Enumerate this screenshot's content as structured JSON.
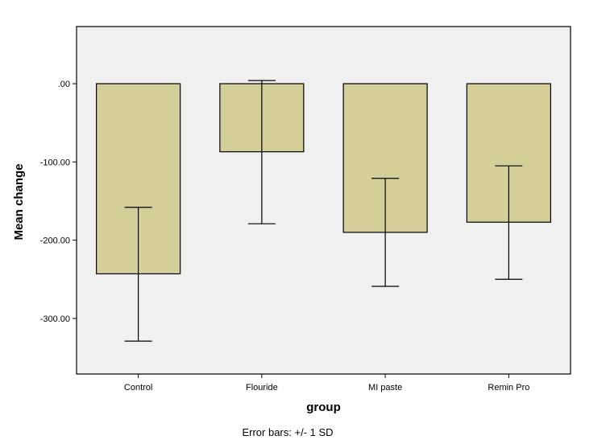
{
  "chart_data": {
    "type": "bar",
    "categories": [
      "Control",
      "Flouride",
      "MI paste",
      "Remin Pro"
    ],
    "values": [
      -243,
      -87,
      -190,
      -177
    ],
    "error_bars": {
      "label": "Error bars: +/- 1 SD",
      "upper": [
        -158,
        4,
        -121,
        -105
      ],
      "lower": [
        -329,
        -179,
        -259,
        -250
      ]
    },
    "xlabel": "group",
    "ylabel": "Mean change",
    "yticks": [
      {
        "value": 0,
        "label": ".00"
      },
      {
        "value": -100,
        "label": "-100.00"
      },
      {
        "value": -200,
        "label": "-200.00"
      },
      {
        "value": -300,
        "label": "-300.00"
      }
    ],
    "ylim": [
      -371,
      73
    ],
    "grid": false,
    "colors": {
      "bar_fill": "#d4cf99",
      "bar_stroke": "#000000",
      "plot_background": "#f0f0f0",
      "error_bar": "#000000"
    }
  }
}
